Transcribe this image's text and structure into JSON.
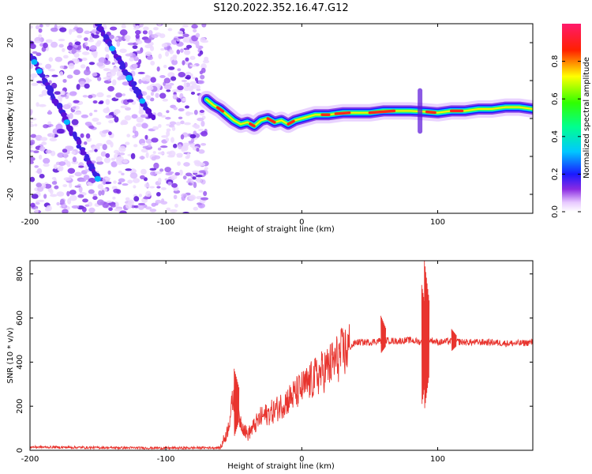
{
  "title": "S120.2022.352.16.47.G12",
  "chart_data": [
    {
      "type": "heatmap",
      "xlabel": "Height of straight line (km)",
      "ylabel": "Frequency (Hz)",
      "xlim": [
        -200,
        170
      ],
      "ylim": [
        -25,
        25
      ],
      "xticks": [
        -200,
        -100,
        0,
        100
      ],
      "yticks": [
        -20,
        -10,
        0,
        10,
        20
      ],
      "colorbar": {
        "label": "Normalized spectral amplitude",
        "range": [
          0,
          1
        ],
        "ticks": [
          "0.0",
          "0.2",
          "0.4",
          "0.6",
          "0.8"
        ]
      },
      "ridge": {
        "x": [
          -70,
          -65,
          -60,
          -55,
          -50,
          -45,
          -40,
          -35,
          -30,
          -25,
          -20,
          -15,
          -10,
          -5,
          0,
          10,
          20,
          30,
          40,
          50,
          60,
          70,
          80,
          90,
          100,
          110,
          120,
          130,
          140,
          150,
          160,
          170
        ],
        "y": [
          5,
          3.5,
          2.5,
          1.0,
          -0.5,
          -1.5,
          -1.0,
          -2.0,
          -0.5,
          0.0,
          -1.0,
          -0.5,
          -1.5,
          -0.5,
          0.0,
          1.0,
          1.0,
          1.5,
          1.5,
          1.5,
          2.0,
          2.0,
          2.0,
          1.8,
          1.5,
          2.0,
          2.0,
          2.5,
          2.5,
          3.0,
          3.0,
          2.5
        ]
      },
      "noise_region_x": [
        -200,
        -70
      ],
      "diagonal_streaks": [
        {
          "x": [
            -200,
            -150
          ],
          "y": [
            17,
            -16
          ]
        },
        {
          "x": [
            -150,
            -110
          ],
          "y": [
            25,
            0
          ]
        }
      ]
    },
    {
      "type": "line",
      "xlabel": "Height of straight line (km)",
      "ylabel": "SNR (10 * v/v)",
      "xlim": [
        -200,
        170
      ],
      "ylim": [
        0,
        860
      ],
      "xticks": [
        -200,
        -100,
        0,
        100
      ],
      "yticks": [
        0,
        200,
        400,
        600,
        800
      ],
      "line_color": "#e8342e",
      "series_envelope": {
        "x": [
          -200,
          -150,
          -100,
          -60,
          -55,
          -50,
          -45,
          -40,
          -30,
          -20,
          -10,
          0,
          10,
          20,
          30,
          40,
          50,
          60,
          70,
          80,
          88,
          92,
          95,
          100,
          110,
          120,
          130,
          140,
          150,
          160,
          170
        ],
        "y": [
          15,
          12,
          10,
          12,
          80,
          250,
          130,
          70,
          150,
          180,
          230,
          280,
          330,
          380,
          440,
          490,
          490,
          500,
          495,
          500,
          490,
          500,
          500,
          490,
          495,
          490,
          490,
          490,
          485,
          485,
          490
        ]
      },
      "spikes": [
        {
          "x": -48,
          "y": 370,
          "y_min": 60
        },
        {
          "x": 60,
          "y": 610,
          "y_min": 440
        },
        {
          "x": 92,
          "y": 860,
          "y_min": 180
        },
        {
          "x": 90,
          "y": 750,
          "y_min": 200
        },
        {
          "x": 112,
          "y": 550,
          "y_min": 450
        }
      ]
    }
  ]
}
